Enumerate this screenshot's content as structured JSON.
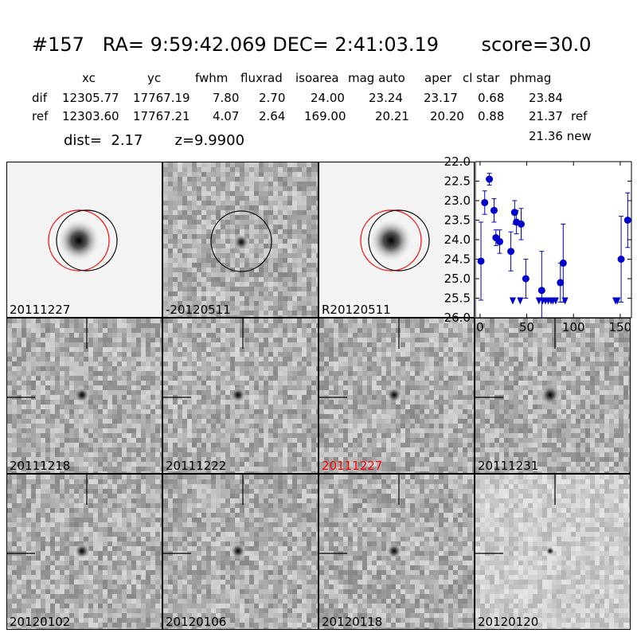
{
  "header": {
    "title": "#157   RA= 9:59:42.069 DEC= 2:41:03.19       score=30.0",
    "columns": [
      "xc",
      "yc",
      "fwhm",
      "fluxrad",
      "isoarea",
      "mag auto",
      "aper",
      "cl star",
      "phmag"
    ],
    "rows": [
      {
        "label": "dif",
        "values": [
          "12305.77",
          "17767.19",
          "7.80",
          "2.70",
          "24.00",
          "23.24",
          "23.17",
          "0.68",
          "23.84"
        ],
        "suffix": ""
      },
      {
        "label": "ref",
        "values": [
          "12303.60",
          "17767.21",
          "4.07",
          "2.64",
          "169.00",
          "20.21",
          "20.20",
          "0.88",
          "21.37"
        ],
        "suffix": "ref"
      }
    ],
    "dist_line": "dist=  2.17       z=9.9900",
    "new_line": "21.36 new"
  },
  "stamps": [
    {
      "label": "20111227",
      "label_color": "#000000",
      "kind": "ref",
      "circles": [
        "#ff0000",
        "#000000"
      ]
    },
    {
      "label": "-20120511",
      "label_color": "#000000",
      "kind": "diff",
      "circles": [
        "#000000"
      ]
    },
    {
      "label": "R20120511",
      "label_color": "#000000",
      "kind": "ref",
      "circles": [
        "#ff0000",
        "#000000"
      ]
    },
    {
      "label": "20111218",
      "label_color": "#000000",
      "kind": "epoch"
    },
    {
      "label": "20111222",
      "label_color": "#000000",
      "kind": "epoch"
    },
    {
      "label": "20111227",
      "label_color": "#ff0000",
      "kind": "epoch"
    },
    {
      "label": "20111231",
      "label_color": "#000000",
      "kind": "epoch"
    },
    {
      "label": "20120102",
      "label_color": "#000000",
      "kind": "epoch"
    },
    {
      "label": "20120106",
      "label_color": "#000000",
      "kind": "epoch"
    },
    {
      "label": "20120118",
      "label_color": "#000000",
      "kind": "epoch"
    },
    {
      "label": "20120120",
      "label_color": "#000000",
      "kind": "epoch"
    }
  ],
  "chart_data": {
    "type": "scatter",
    "title": "",
    "xlabel": "",
    "ylabel": "",
    "xlim": [
      -5,
      162
    ],
    "ylim": [
      26.0,
      22.0
    ],
    "y_inverted": true,
    "xticks": [
      "0",
      "50",
      "100",
      "150"
    ],
    "yticks": [
      "22.0",
      "22.5",
      "23.0",
      "23.5",
      "24.0",
      "24.5",
      "25.0",
      "25.5",
      "26.0"
    ],
    "color": "#0000cc",
    "detections": [
      {
        "x": 1,
        "y": 24.55,
        "err": 1.0
      },
      {
        "x": 5,
        "y": 23.05,
        "err": 0.3
      },
      {
        "x": 10,
        "y": 22.45,
        "err": 0.15
      },
      {
        "x": 15,
        "y": 23.25,
        "err": 0.3
      },
      {
        "x": 17,
        "y": 23.95,
        "err": 0.2
      },
      {
        "x": 21,
        "y": 24.05,
        "err": 0.3
      },
      {
        "x": 33,
        "y": 24.3,
        "err": 0.5
      },
      {
        "x": 37,
        "y": 23.3,
        "err": 0.3
      },
      {
        "x": 39,
        "y": 23.55,
        "err": 0.3
      },
      {
        "x": 44,
        "y": 23.6,
        "err": 0.4
      },
      {
        "x": 49,
        "y": 25.0,
        "err": 0.5
      },
      {
        "x": 66,
        "y": 25.3,
        "err": 1.0
      },
      {
        "x": 86,
        "y": 25.1,
        "err": 0.5
      },
      {
        "x": 89,
        "y": 24.6,
        "err": 1.0
      },
      {
        "x": 151,
        "y": 24.5,
        "err": 1.1
      },
      {
        "x": 158,
        "y": 23.5,
        "err": 0.7
      }
    ],
    "upper_limits": [
      {
        "x": 35,
        "y": 25.5
      },
      {
        "x": 43,
        "y": 25.5
      },
      {
        "x": 63,
        "y": 25.5
      },
      {
        "x": 67,
        "y": 25.5
      },
      {
        "x": 70,
        "y": 25.5
      },
      {
        "x": 73,
        "y": 25.5
      },
      {
        "x": 76,
        "y": 25.5
      },
      {
        "x": 78,
        "y": 25.5
      },
      {
        "x": 81,
        "y": 25.5
      },
      {
        "x": 91,
        "y": 25.5
      },
      {
        "x": 145,
        "y": 25.5
      },
      {
        "x": 147,
        "y": 25.5
      }
    ]
  }
}
